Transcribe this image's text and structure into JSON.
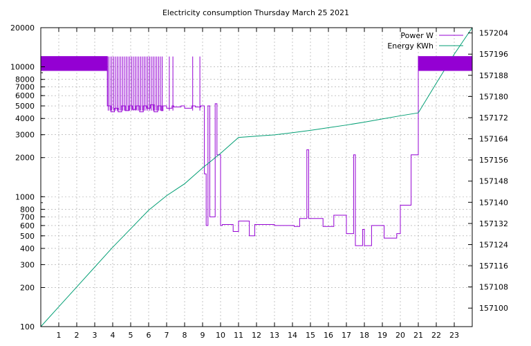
{
  "chart_data": {
    "type": "line",
    "title": "Electricity consumption Thursday March 25 2021",
    "xlabel": "",
    "ylabel": "",
    "y2label": "",
    "grid": true,
    "legend": "top-right",
    "x_range": [
      0,
      24.0
    ],
    "x_ticks": [
      1,
      2,
      3,
      4,
      5,
      6,
      7,
      8,
      9,
      10,
      11,
      12,
      13,
      14,
      15,
      16,
      17,
      18,
      19,
      20,
      21,
      22,
      23
    ],
    "y_scale": "log",
    "y_range": [
      100,
      20000
    ],
    "y_ticks": [
      100,
      200,
      300,
      400,
      500,
      600,
      700,
      800,
      1000,
      2000,
      3000,
      4000,
      5000,
      6000,
      7000,
      8000,
      10000,
      20000
    ],
    "y2_range": [
      157093,
      157206
    ],
    "y2_ticks": [
      157100,
      157108,
      157116,
      157124,
      157132,
      157140,
      157148,
      157156,
      157164,
      157172,
      157180,
      157188,
      157196,
      157204
    ],
    "series": [
      {
        "name": "Power W",
        "color": "#9400d3",
        "axis": "y",
        "x": [
          0,
          3.7,
          3.7,
          3.9,
          3.9,
          4.1,
          4.1,
          4.3,
          4.3,
          4.5,
          4.5,
          4.7,
          4.7,
          4.9,
          4.9,
          5.1,
          5.1,
          5.3,
          5.3,
          5.5,
          5.5,
          5.7,
          5.7,
          5.9,
          5.9,
          6.1,
          6.1,
          6.3,
          6.3,
          6.5,
          6.5,
          6.7,
          6.7,
          6.8,
          6.8,
          7.0,
          7.0,
          7.3,
          7.3,
          7.4,
          7.4,
          7.8,
          7.8,
          8.0,
          8.0,
          8.4,
          8.4,
          8.6,
          8.6,
          8.9,
          8.9,
          9.1,
          9.1,
          9.2,
          9.2,
          9.3,
          9.3,
          9.4,
          9.4,
          9.7,
          9.7,
          9.8,
          9.8,
          10.0,
          10.0,
          10.1,
          10.1,
          10.7,
          10.7,
          11.0,
          11.0,
          11.6,
          11.6,
          11.9,
          11.9,
          13.0,
          13.0,
          14.1,
          14.1,
          14.4,
          14.4,
          14.8,
          14.8,
          14.9,
          14.9,
          15.7,
          15.7,
          16.3,
          16.3,
          17.0,
          17.0,
          17.4,
          17.4,
          17.5,
          17.5,
          17.9,
          17.9,
          18.0,
          18.0,
          18.4,
          18.4,
          19.1,
          19.1,
          19.8,
          19.8,
          20.0,
          20.0,
          20.6,
          20.6,
          21.0,
          21.0,
          24.0
        ],
        "values": [
          12000,
          12000,
          5000,
          5000,
          4500,
          4500,
          4800,
          4800,
          4500,
          4500,
          5000,
          5000,
          4600,
          4600,
          5000,
          5000,
          4700,
          4700,
          5000,
          5000,
          4500,
          4500,
          5000,
          5000,
          4800,
          4800,
          5100,
          5100,
          4500,
          4500,
          5000,
          5000,
          4600,
          4600,
          5000,
          5000,
          4800,
          4800,
          5000,
          5000,
          4900,
          4900,
          5000,
          5000,
          4800,
          4800,
          5000,
          5000,
          4900,
          4900,
          5000,
          5000,
          1500,
          1500,
          600,
          600,
          5000,
          5000,
          700,
          700,
          5200,
          5200,
          2100,
          2100,
          600,
          600,
          610,
          610,
          540,
          540,
          650,
          650,
          500,
          500,
          610,
          610,
          600,
          600,
          590,
          590,
          680,
          680,
          2300,
          2300,
          680,
          680,
          590,
          590,
          720,
          720,
          520,
          520,
          2100,
          2100,
          420,
          420,
          560,
          560,
          420,
          420,
          600,
          600,
          480,
          480,
          520,
          520,
          860,
          860,
          2100,
          2100,
          12000,
          12000
        ]
      },
      {
        "name": "Energy KWh",
        "color": "#009e73",
        "axis": "y2",
        "x": [
          0,
          1,
          2,
          3,
          4,
          5,
          6,
          7,
          8,
          9,
          10,
          11,
          12,
          13,
          14,
          15,
          16,
          17,
          18,
          19,
          20,
          21,
          22,
          23,
          24.0
        ],
        "values": [
          157093,
          157100.5,
          157108,
          157115.5,
          157123,
          157130,
          157137,
          157142.5,
          157147,
          157153,
          157158.5,
          157164.5,
          157165,
          157165.5,
          157166.3,
          157167.2,
          157168.2,
          157169.2,
          157170.3,
          157171.5,
          157172.7,
          157173.8,
          157185,
          157196,
          157206
        ]
      }
    ]
  }
}
